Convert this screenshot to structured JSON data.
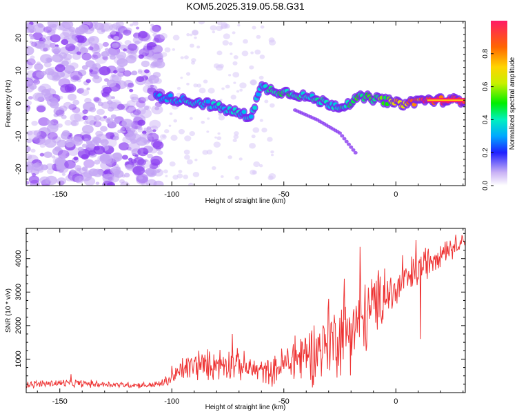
{
  "title": "KOM5.2025.319.05.58.G31",
  "chart_data": [
    {
      "type": "heatmap",
      "name": "spectrogram",
      "xlabel": "Height of straight line (km)",
      "ylabel": "Frequency (Hz)",
      "xlim": [
        -165,
        31
      ],
      "ylim": [
        -25,
        25
      ],
      "x_ticks": [
        -150,
        -100,
        -50,
        0
      ],
      "y_ticks": [
        -20,
        -10,
        0,
        10,
        20
      ],
      "colorbar": {
        "label": "Normalized spectral amplitude",
        "range": [
          0,
          1
        ],
        "ticks": [
          "0.0",
          "0.2",
          "0.4",
          "0.6",
          "0.8"
        ]
      },
      "ridge": {
        "x": [
          -105,
          -95,
          -85,
          -75,
          -65,
          -60,
          -55,
          -45,
          -35,
          -25,
          -15,
          -5,
          0,
          5,
          10,
          15,
          31
        ],
        "freq_hz": [
          2,
          1,
          0,
          -2,
          -4,
          5,
          4,
          3,
          1,
          -1,
          2,
          1,
          0,
          0,
          1,
          1,
          1
        ],
        "amplitude": [
          0.3,
          0.35,
          0.35,
          0.4,
          0.35,
          0.35,
          0.45,
          0.45,
          0.4,
          0.4,
          0.5,
          0.55,
          0.75,
          0.8,
          0.9,
          1.0,
          1.0
        ]
      },
      "secondary_branch": {
        "x": [
          -45,
          -35,
          -25,
          -18
        ],
        "freq_hz": [
          -2,
          -5,
          -9,
          -15
        ]
      }
    },
    {
      "type": "line",
      "name": "snr",
      "xlabel": "Height of straight line (km)",
      "ylabel": "SNR (10 * v/v)",
      "xlim": [
        -165,
        31
      ],
      "ylim": [
        0,
        4900
      ],
      "x_ticks": [
        -150,
        -100,
        -50,
        0
      ],
      "y_ticks": [
        1000,
        2000,
        3000,
        4000
      ],
      "color": "#ee3333",
      "x": [
        -165,
        -160,
        -150,
        -140,
        -130,
        -120,
        -110,
        -105,
        -100,
        -95,
        -90,
        -85,
        -80,
        -75,
        -70,
        -65,
        -60,
        -55,
        -50,
        -45,
        -40,
        -35,
        -30,
        -25,
        -20,
        -15,
        -10,
        -5,
        0,
        5,
        10,
        15,
        20,
        25,
        31
      ],
      "mean": [
        250,
        260,
        280,
        270,
        250,
        230,
        220,
        260,
        420,
        700,
        800,
        800,
        870,
        880,
        830,
        700,
        650,
        620,
        850,
        1000,
        1150,
        1300,
        1500,
        1700,
        2000,
        2100,
        2600,
        2900,
        3000,
        3350,
        3650,
        3950,
        4200,
        4350,
        4600
      ],
      "spread": [
        120,
        110,
        130,
        120,
        100,
        90,
        90,
        120,
        220,
        400,
        450,
        450,
        500,
        500,
        450,
        400,
        380,
        400,
        600,
        800,
        900,
        1000,
        1100,
        1200,
        1300,
        1300,
        1000,
        800,
        700,
        600,
        600,
        500,
        400,
        350,
        200
      ],
      "spikes": [
        [
          -145,
          550
        ],
        [
          -100,
          800
        ],
        [
          -88,
          1250
        ],
        [
          -73,
          1750
        ],
        [
          -45,
          1700
        ],
        [
          -30,
          2800
        ],
        [
          -23,
          3400
        ],
        [
          -16,
          4350
        ],
        [
          -5,
          3700
        ],
        [
          3,
          4100
        ],
        [
          9,
          4550
        ],
        [
          11,
          1600
        ],
        [
          22,
          4500
        ]
      ]
    }
  ]
}
